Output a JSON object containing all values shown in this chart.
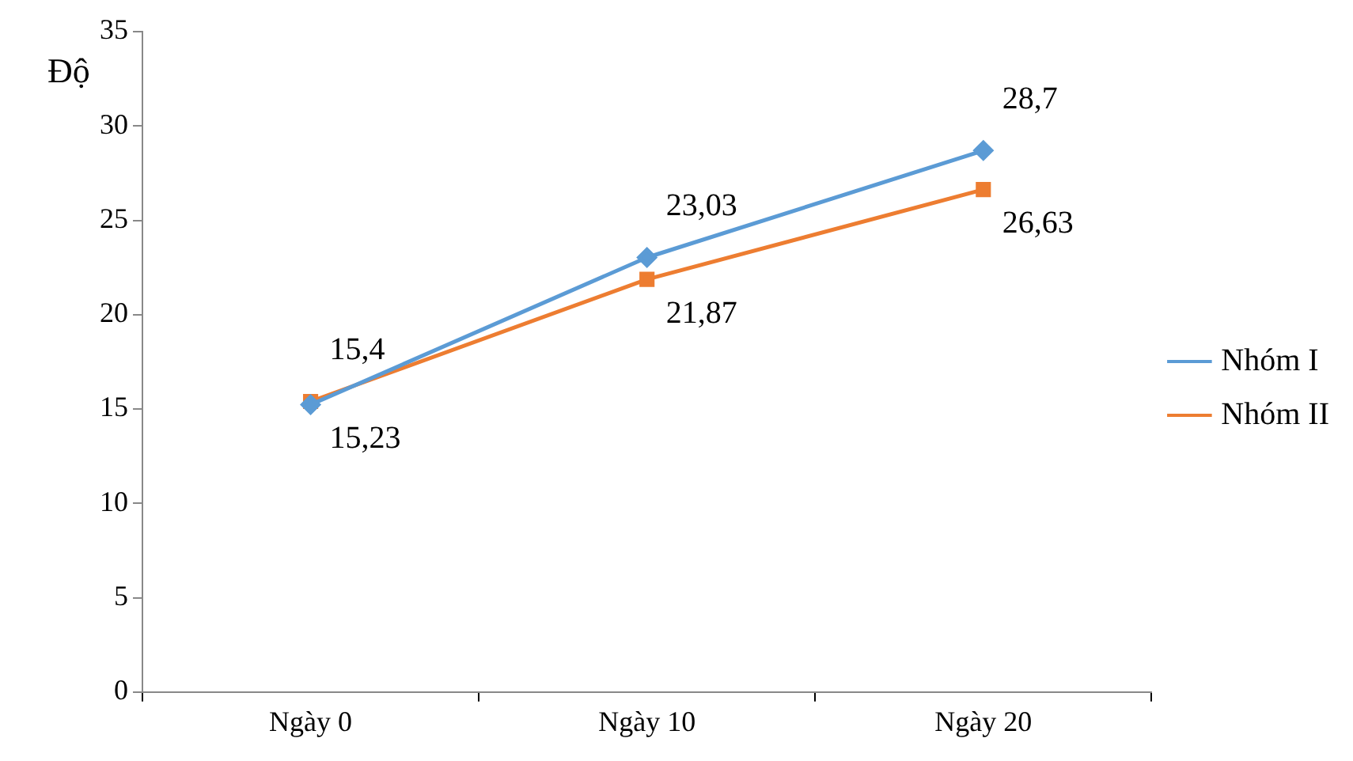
{
  "chart_data": {
    "type": "line",
    "ylabel": "Độ",
    "categories": [
      "Ngày 0",
      "Ngày 10",
      "Ngày 20"
    ],
    "series": [
      {
        "name": "Nhóm I",
        "color": "#5b9bd5",
        "marker": "diamond",
        "values": [
          15.23,
          23.03,
          28.7
        ],
        "value_labels": [
          "15,23",
          "23,03",
          "28,7"
        ]
      },
      {
        "name": "Nhóm II",
        "color": "#ed7d31",
        "marker": "square",
        "values": [
          15.4,
          21.87,
          26.63
        ],
        "value_labels": [
          "15,4",
          "21,87",
          "26,63"
        ]
      }
    ],
    "ylim": [
      0,
      35
    ],
    "yticks": [
      0,
      5,
      10,
      15,
      20,
      25,
      30,
      35
    ],
    "grid": false,
    "legend": "right"
  }
}
